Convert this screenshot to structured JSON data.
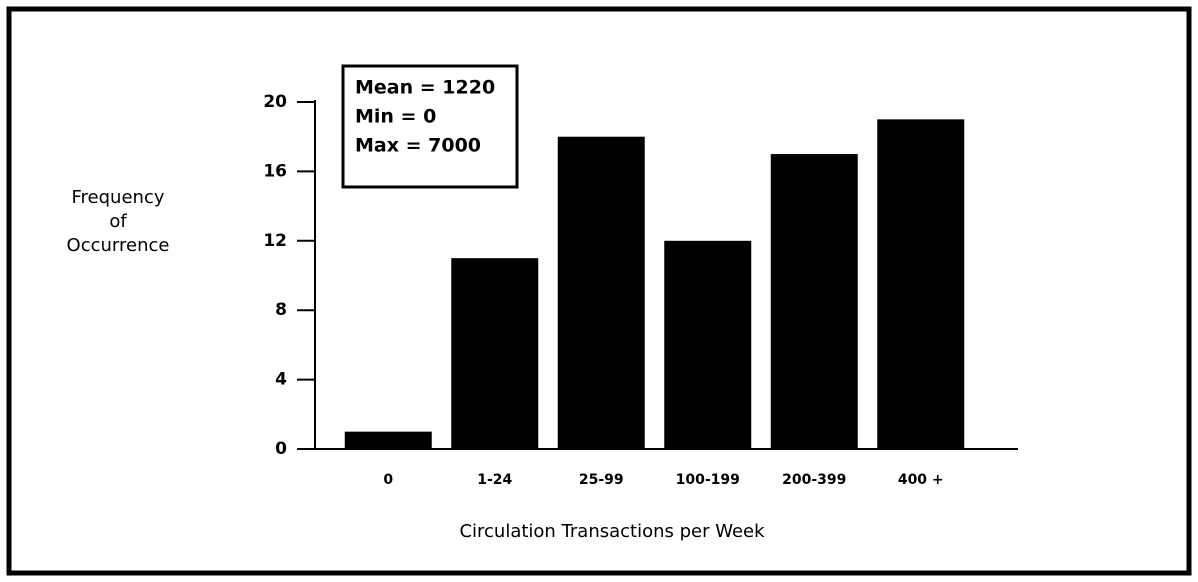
{
  "chart_data": {
    "type": "bar",
    "y_label": [
      "Frequency",
      "of",
      "Occurrence"
    ],
    "x_label": "Circulation Transactions per Week",
    "annotation": [
      "Mean = 1220",
      "Min = 0",
      "Max = 7000"
    ],
    "categories": [
      "0",
      "1-24",
      "25-99",
      "100-199",
      "200-399",
      "400 +"
    ],
    "values": [
      1,
      11,
      18,
      12,
      17,
      19
    ],
    "color": "#000000",
    "ylim": [
      0,
      20
    ],
    "yticks": [
      0,
      4,
      8,
      12,
      16,
      20
    ],
    "grid": false
  }
}
